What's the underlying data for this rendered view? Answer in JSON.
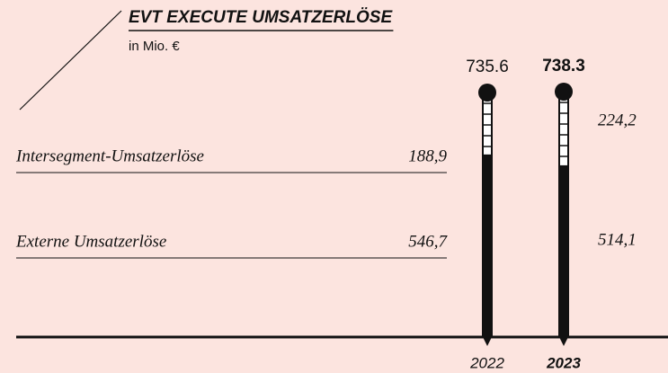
{
  "chart_data": {
    "type": "thermometer-bar",
    "title": "EVT EXECUTE UMSATZERLÖSE",
    "subtitle": "in Mio. €",
    "categories": [
      "2022",
      "2023"
    ],
    "series": [
      {
        "name": "Externe Umsatzerlöse",
        "color": "#111111",
        "values": [
          546.7,
          514.1
        ],
        "value_labels": [
          "546,7",
          "514,1"
        ]
      },
      {
        "name": "Intersegment-Umsatzerlöse",
        "color": "#ffffff",
        "values": [
          188.9,
          224.2
        ],
        "value_labels": [
          "188,9",
          "224,2"
        ]
      }
    ],
    "totals": [
      735.6,
      738.3
    ]
  }
}
